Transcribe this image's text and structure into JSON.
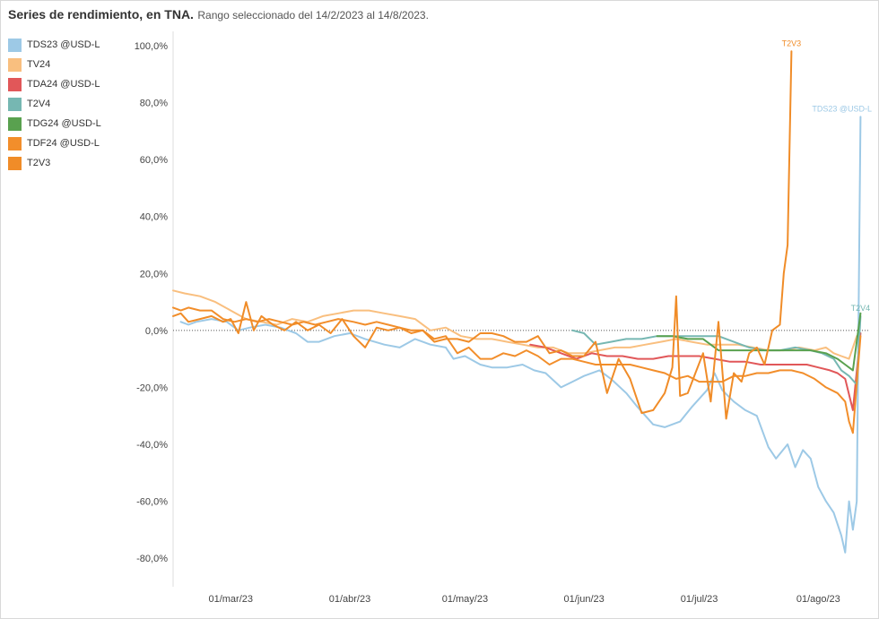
{
  "header": {
    "title": "Series de rendimiento, en TNA.",
    "subtitle": "Rango seleccionado del 14/2/2023 al 14/8/2023."
  },
  "chart_data": {
    "type": "line",
    "x_type": "date",
    "xlim": [
      "2023-02-14",
      "2023-08-14"
    ],
    "ylim": [
      -90,
      105
    ],
    "yticks": [
      100,
      80,
      60,
      40,
      20,
      0,
      -20,
      -40,
      -60,
      -80
    ],
    "ytick_labels": [
      "100,0%",
      "80,0%",
      "60,0%",
      "40,0%",
      "20,0%",
      "0,0%",
      "-20,0%",
      "-40,0%",
      "-60,0%",
      "-80,0%"
    ],
    "xticks": [
      "2023-03-01",
      "2023-04-01",
      "2023-05-01",
      "2023-06-01",
      "2023-07-01",
      "2023-08-01"
    ],
    "xtick_labels": [
      "01/mar/23",
      "01/abr/23",
      "01/may/23",
      "01/jun/23",
      "01/jul/23",
      "01/ago/23"
    ],
    "zero_line": true,
    "grid": false,
    "legend_position": "left",
    "series": [
      {
        "name": "TDS23 @USD-L",
        "color": "#9dc9e6",
        "end_label": "TDS23 @USD-L",
        "x": [
          "2023-02-16",
          "2023-02-18",
          "2023-02-20",
          "2023-02-24",
          "2023-02-28",
          "2023-03-03",
          "2023-03-06",
          "2023-03-10",
          "2023-03-14",
          "2023-03-18",
          "2023-03-21",
          "2023-03-24",
          "2023-03-28",
          "2023-04-01",
          "2023-04-05",
          "2023-04-10",
          "2023-04-14",
          "2023-04-18",
          "2023-04-22",
          "2023-04-26",
          "2023-04-28",
          "2023-05-01",
          "2023-05-05",
          "2023-05-08",
          "2023-05-12",
          "2023-05-16",
          "2023-05-19",
          "2023-05-22",
          "2023-05-26",
          "2023-05-29",
          "2023-06-01",
          "2023-06-05",
          "2023-06-08",
          "2023-06-12",
          "2023-06-15",
          "2023-06-19",
          "2023-06-22",
          "2023-06-26",
          "2023-06-29",
          "2023-07-03",
          "2023-07-05",
          "2023-07-07",
          "2023-07-10",
          "2023-07-13",
          "2023-07-16",
          "2023-07-19",
          "2023-07-21",
          "2023-07-24",
          "2023-07-26",
          "2023-07-28",
          "2023-07-30",
          "2023-08-01",
          "2023-08-03",
          "2023-08-05",
          "2023-08-07",
          "2023-08-08",
          "2023-08-09",
          "2023-08-10",
          "2023-08-11",
          "2023-08-12"
        ],
        "values": [
          3,
          2,
          3,
          4,
          3,
          0,
          1,
          2,
          1,
          -1,
          -4,
          -4,
          -2,
          -1,
          -3,
          -5,
          -6,
          -3,
          -5,
          -6,
          -10,
          -9,
          -12,
          -13,
          -13,
          -12,
          -14,
          -15,
          -20,
          -18,
          -16,
          -14,
          -17,
          -22,
          -27,
          -33,
          -34,
          -32,
          -27,
          -21,
          -15,
          -21,
          -25,
          -28,
          -30,
          -41,
          -45,
          -40,
          -48,
          -42,
          -45,
          -55,
          -60,
          -64,
          -72,
          -78,
          -60,
          -70,
          -60,
          75
        ],
        "end_value": 75
      },
      {
        "name": "TV24",
        "color": "#f9bf7f",
        "end_label": "",
        "x": [
          "2023-02-14",
          "2023-02-17",
          "2023-02-21",
          "2023-02-25",
          "2023-03-01",
          "2023-03-05",
          "2023-03-09",
          "2023-03-13",
          "2023-03-17",
          "2023-03-21",
          "2023-03-25",
          "2023-03-29",
          "2023-04-02",
          "2023-04-06",
          "2023-04-10",
          "2023-04-14",
          "2023-04-18",
          "2023-04-22",
          "2023-04-26",
          "2023-04-30",
          "2023-05-04",
          "2023-05-08",
          "2023-05-12",
          "2023-05-16",
          "2023-05-20",
          "2023-05-24",
          "2023-05-28",
          "2023-06-01",
          "2023-06-05",
          "2023-06-09",
          "2023-06-13",
          "2023-06-17",
          "2023-06-21",
          "2023-06-25",
          "2023-06-29",
          "2023-07-03",
          "2023-07-07",
          "2023-07-11",
          "2023-07-15",
          "2023-07-19",
          "2023-07-23",
          "2023-07-27",
          "2023-07-31",
          "2023-08-03",
          "2023-08-05",
          "2023-08-07",
          "2023-08-09",
          "2023-08-11"
        ],
        "values": [
          14,
          13,
          12,
          10,
          7,
          4,
          3,
          2,
          4,
          3,
          5,
          6,
          7,
          7,
          6,
          5,
          4,
          0,
          1,
          -2,
          -3,
          -3,
          -4,
          -5,
          -6,
          -6,
          -8,
          -8,
          -7,
          -6,
          -6,
          -5,
          -4,
          -3,
          -4,
          -5,
          -5,
          -5,
          -6,
          -7,
          -7,
          -6,
          -7,
          -6,
          -8,
          -9,
          -10,
          -2
        ],
        "end_value": -2
      },
      {
        "name": "TDA24 @USD-L",
        "color": "#e15759",
        "end_label": "",
        "x": [
          "2023-05-18",
          "2023-05-22",
          "2023-05-26",
          "2023-05-30",
          "2023-06-03",
          "2023-06-07",
          "2023-06-11",
          "2023-06-15",
          "2023-06-19",
          "2023-06-23",
          "2023-06-27",
          "2023-07-01",
          "2023-07-05",
          "2023-07-09",
          "2023-07-13",
          "2023-07-17",
          "2023-07-21",
          "2023-07-25",
          "2023-07-29",
          "2023-08-01",
          "2023-08-04",
          "2023-08-06",
          "2023-08-08",
          "2023-08-10",
          "2023-08-12"
        ],
        "values": [
          -5,
          -6,
          -8,
          -10,
          -8,
          -9,
          -9,
          -10,
          -10,
          -9,
          -9,
          -9,
          -10,
          -11,
          -11,
          -12,
          -12,
          -12,
          -12,
          -13,
          -14,
          -15,
          -17,
          -28,
          -1
        ],
        "end_value": -1
      },
      {
        "name": "T2V4",
        "color": "#76b7b2",
        "end_label": "T2V4",
        "x": [
          "2023-05-29",
          "2023-06-01",
          "2023-06-04",
          "2023-06-08",
          "2023-06-12",
          "2023-06-16",
          "2023-06-20",
          "2023-06-24",
          "2023-06-28",
          "2023-07-02",
          "2023-07-06",
          "2023-07-10",
          "2023-07-14",
          "2023-07-18",
          "2023-07-22",
          "2023-07-26",
          "2023-07-30",
          "2023-08-02",
          "2023-08-05",
          "2023-08-07",
          "2023-08-09",
          "2023-08-11",
          "2023-08-12"
        ],
        "values": [
          0,
          -1,
          -5,
          -4,
          -3,
          -3,
          -2,
          -2,
          -2,
          -2,
          -2,
          -4,
          -6,
          -7,
          -7,
          -6,
          -7,
          -8,
          -10,
          -14,
          -16,
          -19,
          5
        ],
        "end_value": 5
      },
      {
        "name": "TDG24 @USD-L",
        "color": "#59a14f",
        "end_label": "",
        "x": [
          "2023-06-20",
          "2023-06-24",
          "2023-06-28",
          "2023-07-02",
          "2023-07-06",
          "2023-07-10",
          "2023-07-14",
          "2023-07-18",
          "2023-07-22",
          "2023-07-26",
          "2023-07-30",
          "2023-08-03",
          "2023-08-06",
          "2023-08-08",
          "2023-08-10",
          "2023-08-12"
        ],
        "values": [
          -2,
          -2,
          -3,
          -3,
          -7,
          -7,
          -7,
          -7,
          -7,
          -7,
          -7,
          -8,
          -10,
          -12,
          -14,
          6
        ],
        "end_value": 6
      },
      {
        "name": "TDF24 @USD-L",
        "color": "#f28e2b",
        "end_label": "",
        "x": [
          "2023-02-14",
          "2023-02-16",
          "2023-02-18",
          "2023-02-21",
          "2023-02-24",
          "2023-02-27",
          "2023-03-02",
          "2023-03-05",
          "2023-03-08",
          "2023-03-11",
          "2023-03-14",
          "2023-03-17",
          "2023-03-20",
          "2023-03-23",
          "2023-03-26",
          "2023-03-29",
          "2023-04-02",
          "2023-04-05",
          "2023-04-08",
          "2023-04-11",
          "2023-04-14",
          "2023-04-17",
          "2023-04-20",
          "2023-04-23",
          "2023-04-26",
          "2023-04-29",
          "2023-05-02",
          "2023-05-05",
          "2023-05-08",
          "2023-05-11",
          "2023-05-14",
          "2023-05-17",
          "2023-05-20",
          "2023-05-23",
          "2023-05-26",
          "2023-05-29",
          "2023-06-01",
          "2023-06-04",
          "2023-06-07",
          "2023-06-10",
          "2023-06-13",
          "2023-06-16",
          "2023-06-19",
          "2023-06-22",
          "2023-06-25",
          "2023-06-28",
          "2023-07-01",
          "2023-07-04",
          "2023-07-07",
          "2023-07-10",
          "2023-07-13",
          "2023-07-16",
          "2023-07-19",
          "2023-07-22",
          "2023-07-25",
          "2023-07-28",
          "2023-07-31",
          "2023-08-03",
          "2023-08-06",
          "2023-08-08",
          "2023-08-09",
          "2023-08-10",
          "2023-08-12"
        ],
        "values": [
          8,
          7,
          8,
          7,
          7,
          4,
          3,
          4,
          3,
          4,
          3,
          2,
          3,
          2,
          3,
          4,
          3,
          2,
          3,
          2,
          1,
          -1,
          0,
          -3,
          -2,
          -8,
          -6,
          -10,
          -10,
          -8,
          -9,
          -7,
          -9,
          -12,
          -10,
          -10,
          -11,
          -12,
          -12,
          -12,
          -12,
          -13,
          -14,
          -15,
          -17,
          -16,
          -18,
          -18,
          -18,
          -16,
          -16,
          -15,
          -15,
          -14,
          -14,
          -15,
          -17,
          -20,
          -22,
          -25,
          -32,
          -36,
          -2
        ],
        "end_value": -2
      },
      {
        "name": "T2V3",
        "color": "#f08c28",
        "end_label": "T2V3",
        "x": [
          "2023-02-14",
          "2023-02-16",
          "2023-02-18",
          "2023-02-21",
          "2023-02-24",
          "2023-02-27",
          "2023-03-01",
          "2023-03-03",
          "2023-03-05",
          "2023-03-07",
          "2023-03-09",
          "2023-03-12",
          "2023-03-15",
          "2023-03-18",
          "2023-03-21",
          "2023-03-24",
          "2023-03-27",
          "2023-03-30",
          "2023-04-02",
          "2023-04-05",
          "2023-04-08",
          "2023-04-11",
          "2023-04-14",
          "2023-04-17",
          "2023-04-20",
          "2023-04-23",
          "2023-04-26",
          "2023-04-29",
          "2023-05-02",
          "2023-05-05",
          "2023-05-08",
          "2023-05-11",
          "2023-05-14",
          "2023-05-17",
          "2023-05-20",
          "2023-05-23",
          "2023-05-26",
          "2023-05-29",
          "2023-06-01",
          "2023-06-04",
          "2023-06-07",
          "2023-06-10",
          "2023-06-13",
          "2023-06-16",
          "2023-06-19",
          "2023-06-22",
          "2023-06-24",
          "2023-06-25",
          "2023-06-26",
          "2023-06-28",
          "2023-06-30",
          "2023-07-02",
          "2023-07-04",
          "2023-07-06",
          "2023-07-08",
          "2023-07-10",
          "2023-07-12",
          "2023-07-14",
          "2023-07-16",
          "2023-07-18",
          "2023-07-20",
          "2023-07-21",
          "2023-07-22",
          "2023-07-23",
          "2023-07-24",
          "2023-07-25"
        ],
        "values": [
          5,
          6,
          3,
          4,
          5,
          3,
          4,
          -1,
          10,
          0,
          5,
          2,
          0,
          3,
          0,
          2,
          -1,
          4,
          -2,
          -6,
          1,
          0,
          1,
          0,
          0,
          -4,
          -3,
          -3,
          -4,
          -1,
          -1,
          -2,
          -4,
          -4,
          -2,
          -8,
          -7,
          -9,
          -9,
          -4,
          -22,
          -10,
          -17,
          -29,
          -28,
          -22,
          -13,
          12,
          -23,
          -22,
          -15,
          -8,
          -25,
          3,
          -31,
          -15,
          -18,
          -8,
          -6,
          -12,
          0,
          1,
          2,
          20,
          30,
          98
        ],
        "end_value": 98
      }
    ]
  }
}
